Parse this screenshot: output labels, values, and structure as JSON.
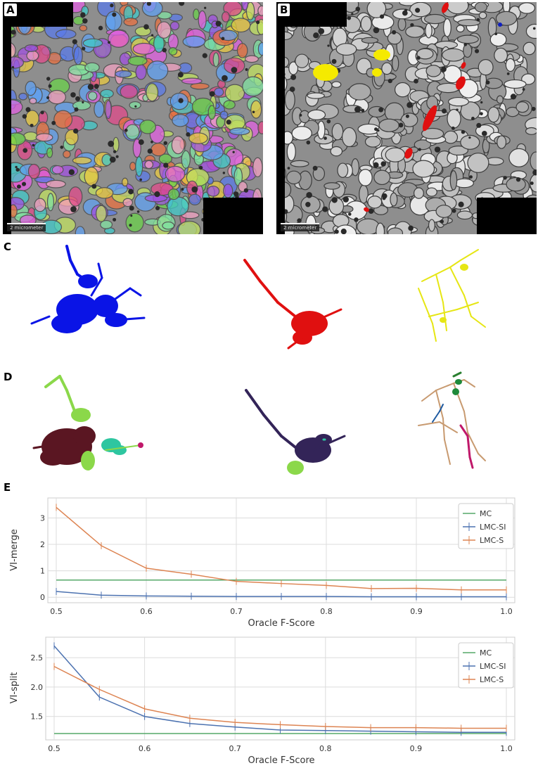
{
  "panels": {
    "a": {
      "letter": "A",
      "scalebar": "2 micrometer"
    },
    "b": {
      "letter": "B",
      "scalebar": "2 micrometer"
    },
    "c": {
      "letter": "C",
      "colors": [
        "#0a14e6",
        "#e01010",
        "#e6e614"
      ]
    },
    "d": {
      "letter": "D",
      "colors": [
        "#5a1622",
        "#8bd84a",
        "#2ec6a0",
        "#332458",
        "#c89a70",
        "#c0186a",
        "#1e5aa0"
      ]
    },
    "e": {
      "letter": "E"
    }
  },
  "chart_data": [
    {
      "type": "line",
      "xlabel": "Oracle F-Score",
      "ylabel": "VI-merge",
      "xlim": [
        0.5,
        1.0
      ],
      "ylim": [
        -0.1,
        3.65
      ],
      "xticks": [
        "0.5",
        "0.6",
        "0.7",
        "0.8",
        "0.9",
        "1.0"
      ],
      "yticks": [
        "0",
        "1",
        "2",
        "3"
      ],
      "grid": true,
      "legend": "top-right",
      "x": [
        0.5,
        0.55,
        0.6,
        0.65,
        0.7,
        0.75,
        0.8,
        0.85,
        0.9,
        0.95,
        1.0
      ],
      "series": [
        {
          "name": "MC",
          "color": "#55a868",
          "values": [
            0.65,
            0.65,
            0.65,
            0.65,
            0.65,
            0.65,
            0.65,
            0.65,
            0.65,
            0.65,
            0.65
          ]
        },
        {
          "name": "LMC-SI",
          "color": "#4c72b0",
          "values": [
            0.22,
            0.08,
            0.05,
            0.04,
            0.03,
            0.03,
            0.03,
            0.02,
            0.02,
            0.02,
            0.02
          ]
        },
        {
          "name": "LMC-S",
          "color": "#dd8452",
          "values": [
            3.4,
            1.95,
            1.1,
            0.87,
            0.6,
            0.52,
            0.45,
            0.33,
            0.34,
            0.28,
            0.28
          ]
        }
      ]
    },
    {
      "type": "line",
      "xlabel": "Oracle F-Score",
      "ylabel": "VI-split",
      "xlim": [
        0.5,
        1.0
      ],
      "ylim": [
        1.15,
        2.8
      ],
      "xticks": [
        "0.5",
        "0.6",
        "0.7",
        "0.8",
        "0.9",
        "1.0"
      ],
      "yticks": [
        "1.5",
        "2.0",
        "2.5"
      ],
      "grid": true,
      "legend": "top-right",
      "x": [
        0.5,
        0.55,
        0.6,
        0.65,
        0.7,
        0.75,
        0.8,
        0.85,
        0.9,
        0.95,
        1.0
      ],
      "series": [
        {
          "name": "MC",
          "color": "#55a868",
          "values": [
            1.21,
            1.21,
            1.21,
            1.21,
            1.21,
            1.21,
            1.21,
            1.21,
            1.21,
            1.21,
            1.21
          ]
        },
        {
          "name": "LMC-SI",
          "color": "#4c72b0",
          "values": [
            2.7,
            1.83,
            1.5,
            1.38,
            1.32,
            1.27,
            1.26,
            1.25,
            1.24,
            1.23,
            1.23
          ]
        },
        {
          "name": "LMC-S",
          "color": "#dd8452",
          "values": [
            2.35,
            1.96,
            1.63,
            1.47,
            1.4,
            1.36,
            1.33,
            1.31,
            1.31,
            1.3,
            1.3
          ]
        }
      ]
    }
  ]
}
